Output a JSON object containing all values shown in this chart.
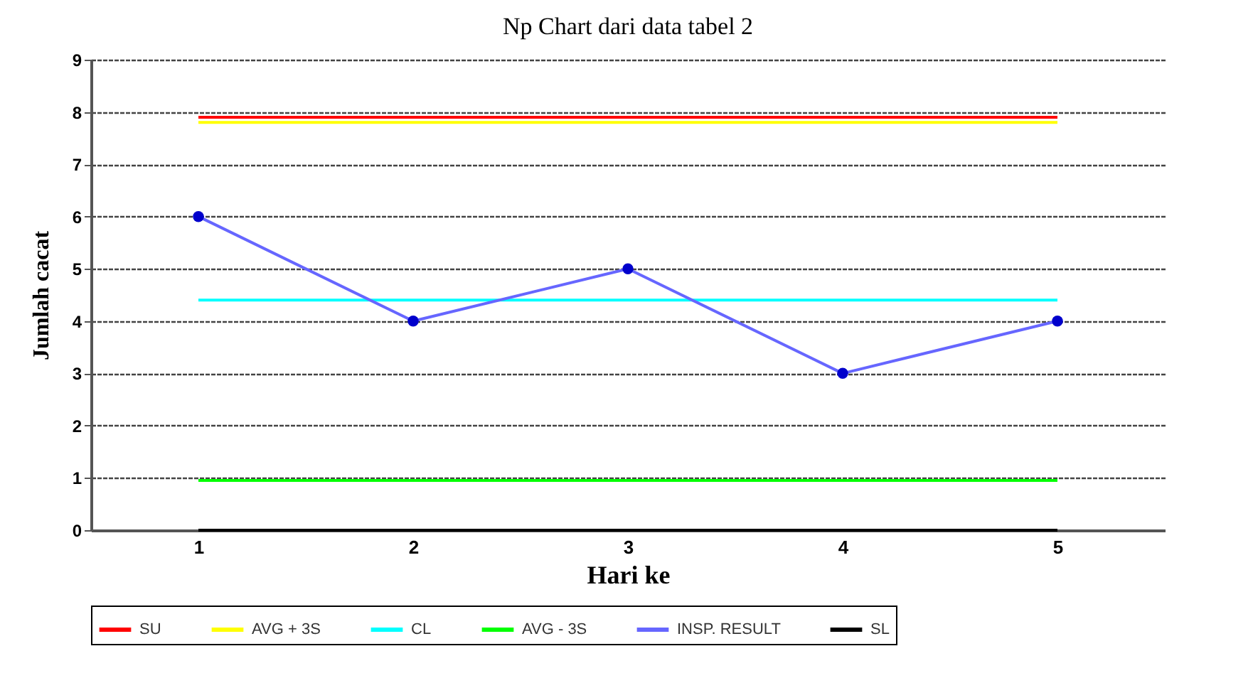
{
  "chart_data": {
    "type": "line",
    "title": "Np Chart dari data tabel 2",
    "xlabel": "Hari ke",
    "ylabel": "Jumlah cacat",
    "categories": [
      "1",
      "2",
      "3",
      "4",
      "5"
    ],
    "series": [
      {
        "name": "SU",
        "color": "#ff0000",
        "values": [
          7.9,
          7.9,
          7.9,
          7.9,
          7.9
        ]
      },
      {
        "name": "AVG + 3S",
        "color": "#ffff00",
        "values": [
          7.8,
          7.8,
          7.8,
          7.8,
          7.8
        ]
      },
      {
        "name": "CL",
        "color": "#00ffff",
        "values": [
          4.4,
          4.4,
          4.4,
          4.4,
          4.4
        ]
      },
      {
        "name": "AVG - 3S",
        "color": "#00ff00",
        "values": [
          0.95,
          0.95,
          0.95,
          0.95,
          0.95
        ]
      },
      {
        "name": "INSP. RESULT",
        "color": "#6666ff",
        "marker": "circle",
        "values": [
          6,
          4,
          5,
          3,
          4
        ]
      },
      {
        "name": "SL",
        "color": "#000000",
        "values": [
          0,
          0,
          0,
          0,
          0
        ]
      }
    ],
    "ylim": [
      0,
      9
    ],
    "yticks": [
      0,
      1,
      2,
      3,
      4,
      5,
      6,
      7,
      8,
      9
    ],
    "grid": "y",
    "legend": "bottom"
  }
}
